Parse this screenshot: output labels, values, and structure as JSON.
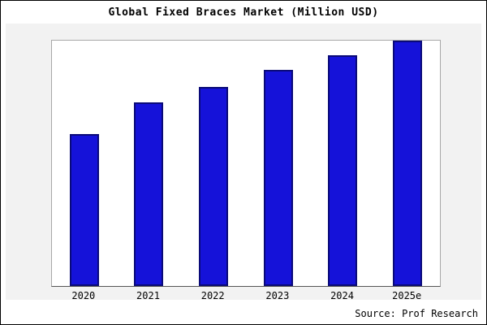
{
  "title": "Global Fixed Braces Market (Million USD)",
  "source": "Source: Prof Research",
  "chart_data": {
    "type": "bar",
    "categories": [
      "2020",
      "2021",
      "2022",
      "2023",
      "2024",
      "2025e"
    ],
    "values": [
      62,
      75,
      81,
      88,
      94,
      100
    ],
    "title": "Global Fixed Braces Market (Million USD)",
    "xlabel": "",
    "ylabel": "",
    "ylim": [
      0,
      100
    ],
    "grid": false,
    "legend": false,
    "bar_color": "#1512d9",
    "bar_border_color": "#0a0a78",
    "plot_bg": "#ffffff",
    "outer_bg": "#f2f2f2",
    "annotation": "Source: Prof Research"
  }
}
